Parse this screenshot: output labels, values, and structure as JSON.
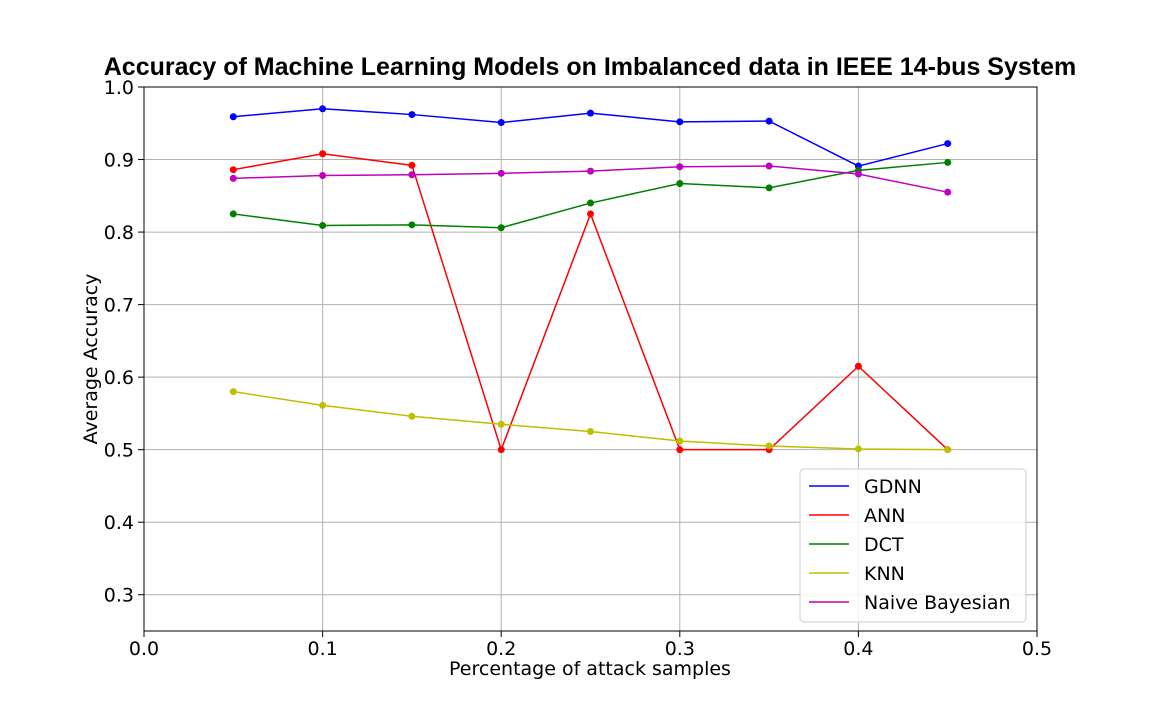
{
  "chart_data": {
    "type": "line",
    "title": "Accuracy of Machine Learning Models on Imbalanced data in IEEE 14-bus System",
    "xlabel": "Percentage of attack samples",
    "ylabel": "Average Accuracy",
    "xlim": [
      0.0,
      0.5
    ],
    "ylim": [
      0.25,
      1.0
    ],
    "x_ticks": [
      "0.0",
      "0.1",
      "0.2",
      "0.3",
      "0.4",
      "0.5"
    ],
    "y_ticks": [
      "0.3",
      "0.4",
      "0.5",
      "0.6",
      "0.7",
      "0.8",
      "0.9",
      "1.0"
    ],
    "grid": true,
    "legend_position": "lower-right",
    "x": [
      0.05,
      0.1,
      0.15,
      0.2,
      0.25,
      0.3,
      0.35,
      0.4,
      0.45
    ],
    "series": [
      {
        "name": "GDNN",
        "color": "#0000ff",
        "values": [
          0.959,
          0.97,
          0.962,
          0.951,
          0.964,
          0.952,
          0.953,
          0.891,
          0.922
        ]
      },
      {
        "name": "ANN",
        "color": "#ff0000",
        "values": [
          0.886,
          0.908,
          0.892,
          0.5,
          0.825,
          0.5,
          0.5,
          0.615,
          0.5
        ]
      },
      {
        "name": "DCT",
        "color": "#008000",
        "values": [
          0.825,
          0.809,
          0.81,
          0.806,
          0.84,
          0.867,
          0.861,
          0.885,
          0.896
        ]
      },
      {
        "name": "KNN",
        "color": "#bfbf00",
        "values": [
          0.58,
          0.561,
          0.546,
          0.535,
          0.525,
          0.512,
          0.505,
          0.501,
          0.5
        ]
      },
      {
        "name": "Naive Bayesian",
        "color": "#bf00bf",
        "values": [
          0.874,
          0.878,
          0.879,
          0.881,
          0.884,
          0.89,
          0.891,
          0.88,
          0.855
        ]
      }
    ]
  }
}
